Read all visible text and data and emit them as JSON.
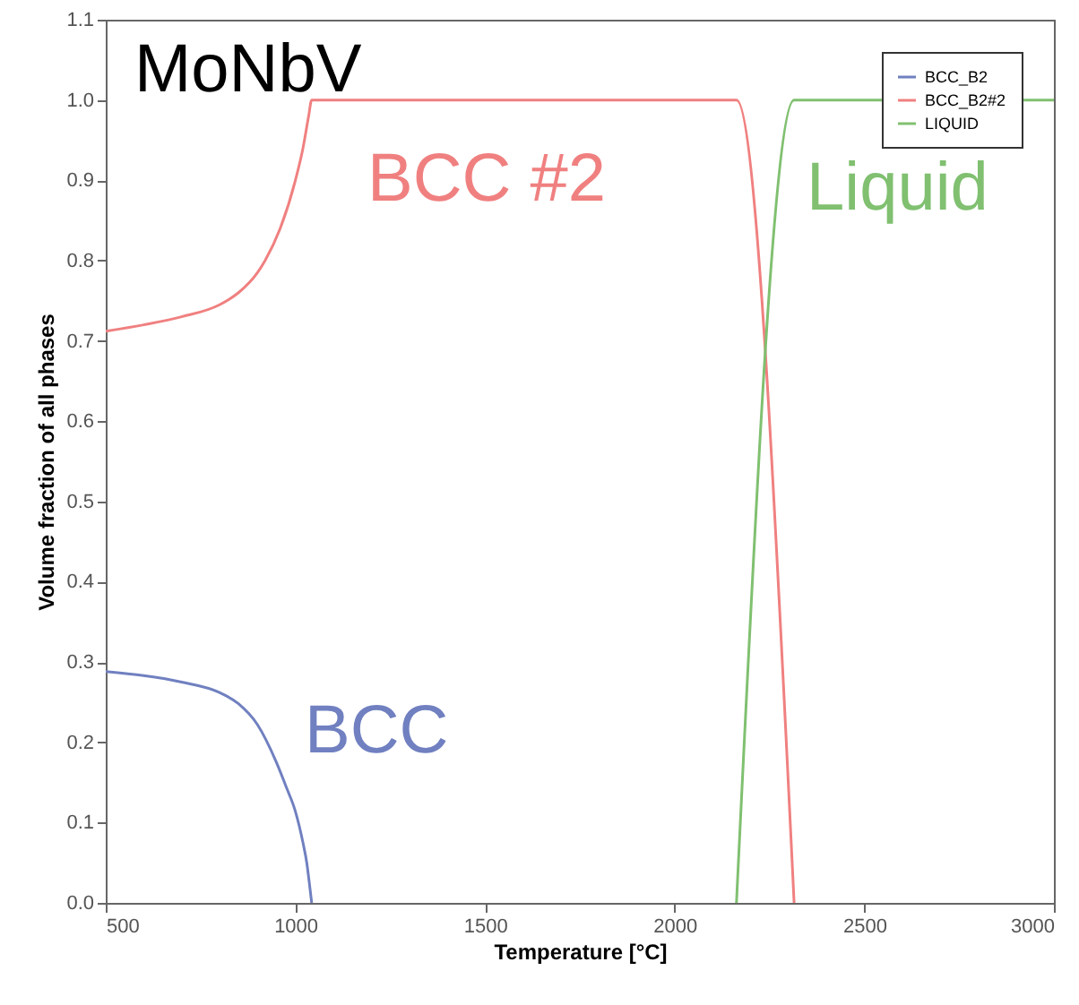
{
  "chart_data": {
    "type": "line",
    "xlabel": "Temperature [°C]",
    "ylabel": "Volume fraction of all phases",
    "series": [
      {
        "name": "BCC_B2",
        "color": "#7080c0",
        "x": [
          500,
          600,
          700,
          800,
          850,
          900,
          950,
          977,
          1000,
          1020,
          1030,
          1038,
          1043
        ],
        "values": [
          0.288,
          0.283,
          0.275,
          0.262,
          0.248,
          0.222,
          0.175,
          0.143,
          0.114,
          0.075,
          0.05,
          0.02,
          0.0
        ]
      },
      {
        "name": "BCC_B2#2",
        "color": "#f08080",
        "x": [
          500,
          600,
          700,
          800,
          850,
          900,
          920,
          960,
          1000,
          1020,
          1035,
          1043,
          2163,
          2315
        ],
        "values": [
          0.712,
          0.72,
          0.73,
          0.745,
          0.76,
          0.785,
          0.8,
          0.84,
          0.9,
          0.94,
          0.98,
          1.0,
          1.0,
          0.0
        ]
      },
      {
        "name": "LIQUID",
        "color": "#80c070",
        "x": [
          2163,
          2315,
          3000
        ],
        "values": [
          0.0,
          1.0,
          1.0
        ]
      }
    ],
    "annotations": [
      "MoNbV",
      "BCC",
      "BCC #2",
      "Liquid"
    ],
    "xlim": [
      500,
      3000
    ],
    "xticks": [
      500,
      1000,
      1500,
      2000,
      2500,
      3000
    ],
    "ylim": [
      0,
      1.1
    ],
    "yticks": [
      {
        "value": 0,
        "label": "0.0"
      },
      {
        "value": 0.1,
        "label": "0.1"
      },
      {
        "value": 0.2,
        "label": "0.2"
      },
      {
        "value": 0.3,
        "label": "0.3"
      },
      {
        "value": 0.4,
        "label": "0.4"
      },
      {
        "value": 0.5,
        "label": "0.5"
      },
      {
        "value": 0.6,
        "label": "0.6"
      },
      {
        "value": 0.7,
        "label": "0.7"
      },
      {
        "value": 0.8,
        "label": "0.8"
      },
      {
        "value": 0.9,
        "label": "0.9"
      },
      {
        "value": 1.0,
        "label": "1.0"
      },
      {
        "value": 1.1,
        "label": "1.1"
      }
    ],
    "grid": false,
    "legend": "top right",
    "marker": "none",
    "line_style": "solid"
  }
}
